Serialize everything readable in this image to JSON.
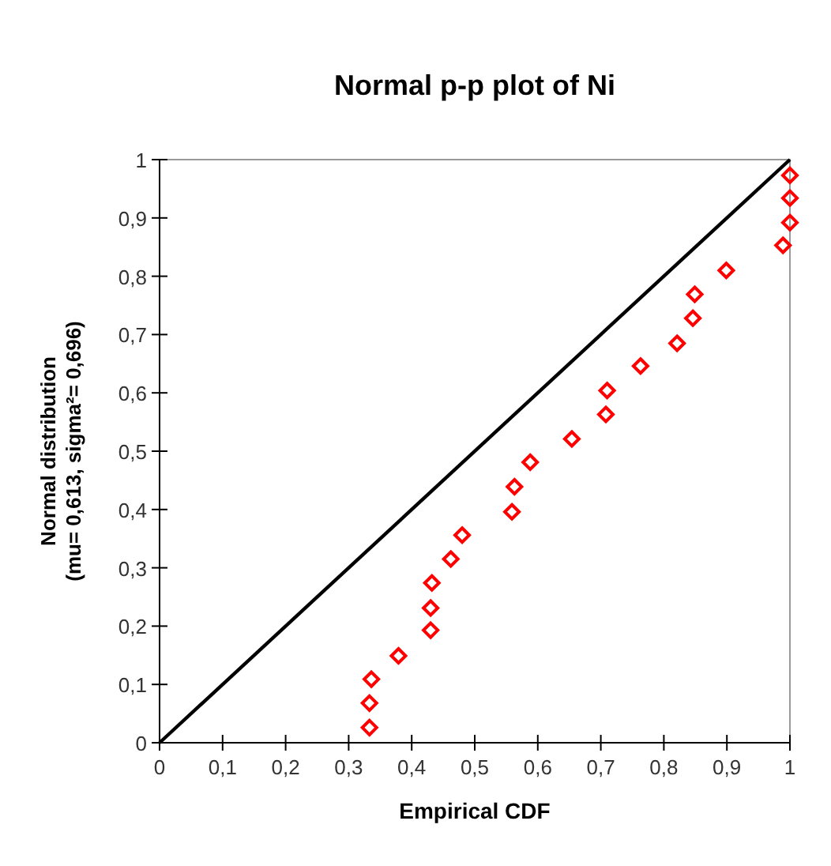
{
  "chart_data": {
    "type": "scatter",
    "title": "Normal p-p plot of Ni",
    "xlabel": "Empirical CDF",
    "ylabel": "Normal distribution\n(mu= 0,613, sigma²= 0,696)",
    "xlim": [
      0,
      1
    ],
    "ylim": [
      0,
      1
    ],
    "xticks": [
      0,
      {
        "value": 0.1,
        "label": "0,1"
      },
      {
        "value": 0.2,
        "label": "0,2"
      },
      {
        "value": 0.3,
        "label": "0,3"
      },
      {
        "value": 0.4,
        "label": "0,4"
      },
      {
        "value": 0.5,
        "label": "0,5"
      },
      {
        "value": 0.6,
        "label": "0,6"
      },
      {
        "value": 0.7,
        "label": "0,7"
      },
      {
        "value": 0.8,
        "label": "0,8"
      },
      {
        "value": 0.9,
        "label": "0,9"
      },
      1
    ],
    "yticks": [
      0,
      {
        "value": 0.1,
        "label": "0,1"
      },
      {
        "value": 0.2,
        "label": "0,2"
      },
      {
        "value": 0.3,
        "label": "0,3"
      },
      {
        "value": 0.4,
        "label": "0,4"
      },
      {
        "value": 0.5,
        "label": "0,5"
      },
      {
        "value": 0.6,
        "label": "0,6"
      },
      {
        "value": 0.7,
        "label": "0,7"
      },
      {
        "value": 0.8,
        "label": "0,8"
      },
      {
        "value": 0.9,
        "label": "0,9"
      },
      1
    ],
    "grid": false,
    "series": [
      {
        "type": "line",
        "color": "#000000",
        "line_style": "solid",
        "x": [
          0,
          1
        ],
        "values": [
          0,
          1
        ]
      },
      {
        "color": "#ff0000",
        "marker": "diamond",
        "x": [
          0.333,
          0.333,
          0.336,
          0.379,
          0.43,
          0.43,
          0.432,
          0.462,
          0.48,
          0.559,
          0.563,
          0.588,
          0.654,
          0.708,
          0.71,
          0.763,
          0.821,
          0.846,
          0.849,
          0.899,
          0.989,
          1,
          1,
          1
        ],
        "values": [
          0.026,
          0.068,
          0.109,
          0.149,
          0.193,
          0.231,
          0.274,
          0.315,
          0.356,
          0.396,
          0.439,
          0.481,
          0.521,
          0.563,
          0.604,
          0.646,
          0.685,
          0.728,
          0.769,
          0.81,
          0.853,
          0.892,
          0.934,
          0.973
        ]
      }
    ]
  }
}
